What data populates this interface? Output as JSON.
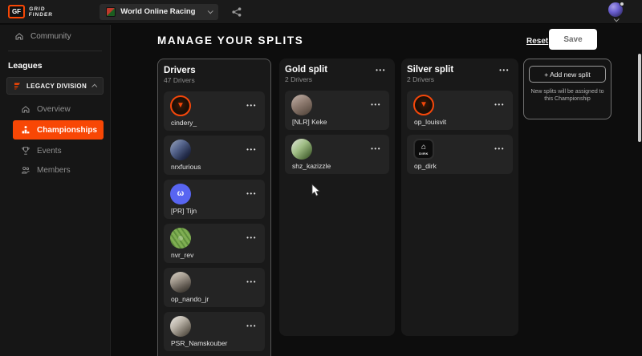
{
  "colors": {
    "accent": "#f84705",
    "save_text": "#6f6f6f",
    "discord_blue": "#5865f2"
  },
  "icons": {
    "more": "•••"
  },
  "topbar": {
    "brand_badge": "GF",
    "brand_line1": "GRID",
    "brand_line2": "FINDER",
    "league_label": "World Online Racing"
  },
  "sidebar": {
    "community_label": "Community",
    "section_label": "Leagues",
    "division_label": "LEGACY DIVISION",
    "items": [
      {
        "label": "Overview",
        "icon": "home"
      },
      {
        "label": "Championships",
        "icon": "podium",
        "active": true
      },
      {
        "label": "Events",
        "icon": "trophy"
      },
      {
        "label": "Members",
        "icon": "members"
      }
    ]
  },
  "main": {
    "title": "MANAGE YOUR SPLITS",
    "reset_label": "Reset",
    "save_label": "Save"
  },
  "board": {
    "columns": [
      {
        "title": "Drivers",
        "count_label": "47 Drivers",
        "kind": "source",
        "has_menu": false,
        "partial_card_at_end": true,
        "drivers": [
          {
            "name": "cindery_",
            "avatar": {
              "bg": "radial-gradient(circle at 50% 45%, #3a1a08 0%, #1c0f06 55%, #121212 100%)",
              "ring": "#f5470a",
              "glyph": "▼",
              "glyph_color": "#f5470a"
            }
          },
          {
            "name": "nrxfurious",
            "avatar": {
              "bg": "linear-gradient(135deg, #9aa6bd 0%, #55648c 40%, #232c4a 75%, #10131f 100%)"
            }
          },
          {
            "name": "[PR] Tijn",
            "avatar": {
              "bg": "#5865f2",
              "glyph": "ω",
              "glyph_color": "#ffffff"
            }
          },
          {
            "name": "nvr_rev",
            "avatar": {
              "bg": "radial-gradient(circle at 50% 50%, rgba(255,255,255,0.28) 0 16%, rgba(0,0,0,0) 17%), repeating-linear-gradient(55deg, #5f8f3c 0 2px, #7fae52 2px 5px)"
            }
          },
          {
            "name": "op_nando_jr",
            "avatar": {
              "bg": "linear-gradient(155deg, #d8d2c6 0%, #a59c90 35%, #5d564e 70%, #28251f 100%)"
            }
          },
          {
            "name": "PSR_Namskouber",
            "avatar": {
              "bg": "linear-gradient(140deg, #efece6 0%, #b8b1a6 40%, #6e675c 75%, #3a352c 100%)"
            }
          }
        ]
      },
      {
        "title": "Gold split",
        "count_label": "2 Drivers",
        "kind": "split",
        "has_menu": true,
        "drivers": [
          {
            "name": "[NLR] Keke",
            "avatar": {
              "bg": "linear-gradient(150deg, #c5b4ab 0%, #8d7a6f 45%, #4a3d33 100%)"
            }
          },
          {
            "name": "shz_kazizzle",
            "avatar": {
              "bg": "linear-gradient(135deg, #e3e7dd 0%, #9dbb82 45%, #55713f 80%, #2c3a20 100%)"
            }
          }
        ]
      },
      {
        "title": "Silver split",
        "count_label": "2 Drivers",
        "kind": "split",
        "has_menu": true,
        "drivers": [
          {
            "name": "op_louisvit",
            "avatar": {
              "bg": "radial-gradient(circle at 50% 45%, #3a1a08 0%, #1c0f06 55%, #121212 100%)",
              "ring": "#f5470a",
              "glyph": "▼",
              "glyph_color": "#f5470a"
            }
          },
          {
            "name": "op_dirk",
            "avatar": {
              "bg": "#0c0c0c",
              "ring": "#2e2e2e",
              "glyph": "⌂",
              "glyph_color": "#ffffff",
              "label": "DIRK",
              "shape": "squircle"
            }
          }
        ]
      }
    ]
  },
  "add_panel": {
    "button_label": "+ Add new split",
    "description": "New splits will be assigned to this Championship"
  }
}
